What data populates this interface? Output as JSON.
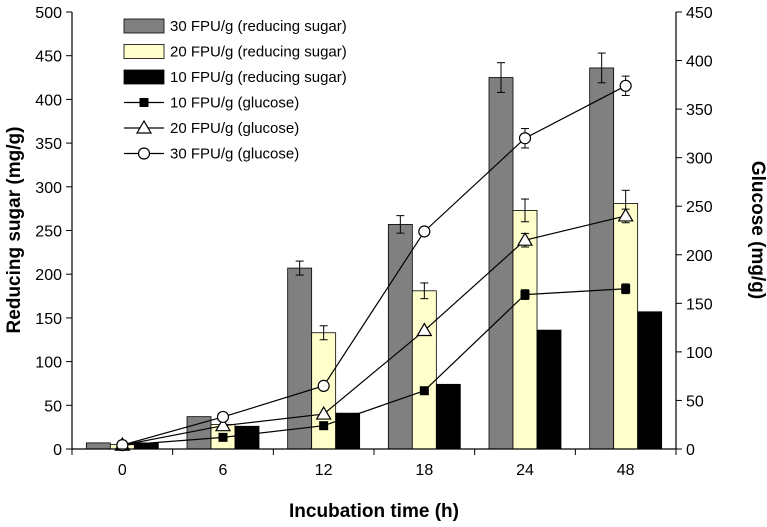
{
  "chart_data": {
    "type": "bar",
    "xlabel": "Incubation time (h)",
    "ylabel": "Reducing sugar (mg/g)",
    "y2label": "Glucose (mg/g)",
    "categories": [
      "0",
      "6",
      "12",
      "18",
      "24",
      "48"
    ],
    "ylim": [
      0,
      500
    ],
    "y2lim": [
      0,
      450
    ],
    "yticks": [
      0,
      50,
      100,
      150,
      200,
      250,
      300,
      350,
      400,
      450,
      500
    ],
    "y2ticks": [
      0,
      50,
      100,
      150,
      200,
      250,
      300,
      350,
      400,
      450
    ],
    "legend_position": "top-left",
    "bar_series": [
      {
        "name": "30 FPU/g (reducing sugar)",
        "color": "#808080",
        "values": [
          7,
          37,
          207,
          257,
          425,
          436
        ],
        "errors": [
          0,
          0,
          8,
          10,
          17,
          17
        ]
      },
      {
        "name": "20 FPU/g (reducing sugar)",
        "color": "#ffffcc",
        "values": [
          5,
          28,
          133,
          181,
          273,
          281
        ],
        "errors": [
          0,
          0,
          8,
          9,
          13,
          15
        ]
      },
      {
        "name": "10 FPU/g (reducing sugar)",
        "color": "#000000",
        "values": [
          7,
          26,
          41,
          74,
          136,
          157
        ],
        "errors": [
          0,
          0,
          0,
          0,
          0,
          0
        ]
      }
    ],
    "line_series": [
      {
        "name": "10 FPU/g (glucose)",
        "marker": "filled-square",
        "values": [
          4,
          12,
          24,
          60,
          159,
          165
        ],
        "errors": [
          0,
          0,
          0,
          0,
          5,
          5
        ]
      },
      {
        "name": "20 FPU/g (glucose)",
        "marker": "open-triangle",
        "values": [
          4,
          24,
          36,
          122,
          215,
          240
        ],
        "errors": [
          0,
          0,
          0,
          0,
          7,
          7
        ]
      },
      {
        "name": "30 FPU/g (glucose)",
        "marker": "open-circle",
        "values": [
          4,
          33,
          65,
          224,
          320,
          374
        ],
        "errors": [
          0,
          0,
          0,
          0,
          10,
          10
        ]
      }
    ]
  }
}
